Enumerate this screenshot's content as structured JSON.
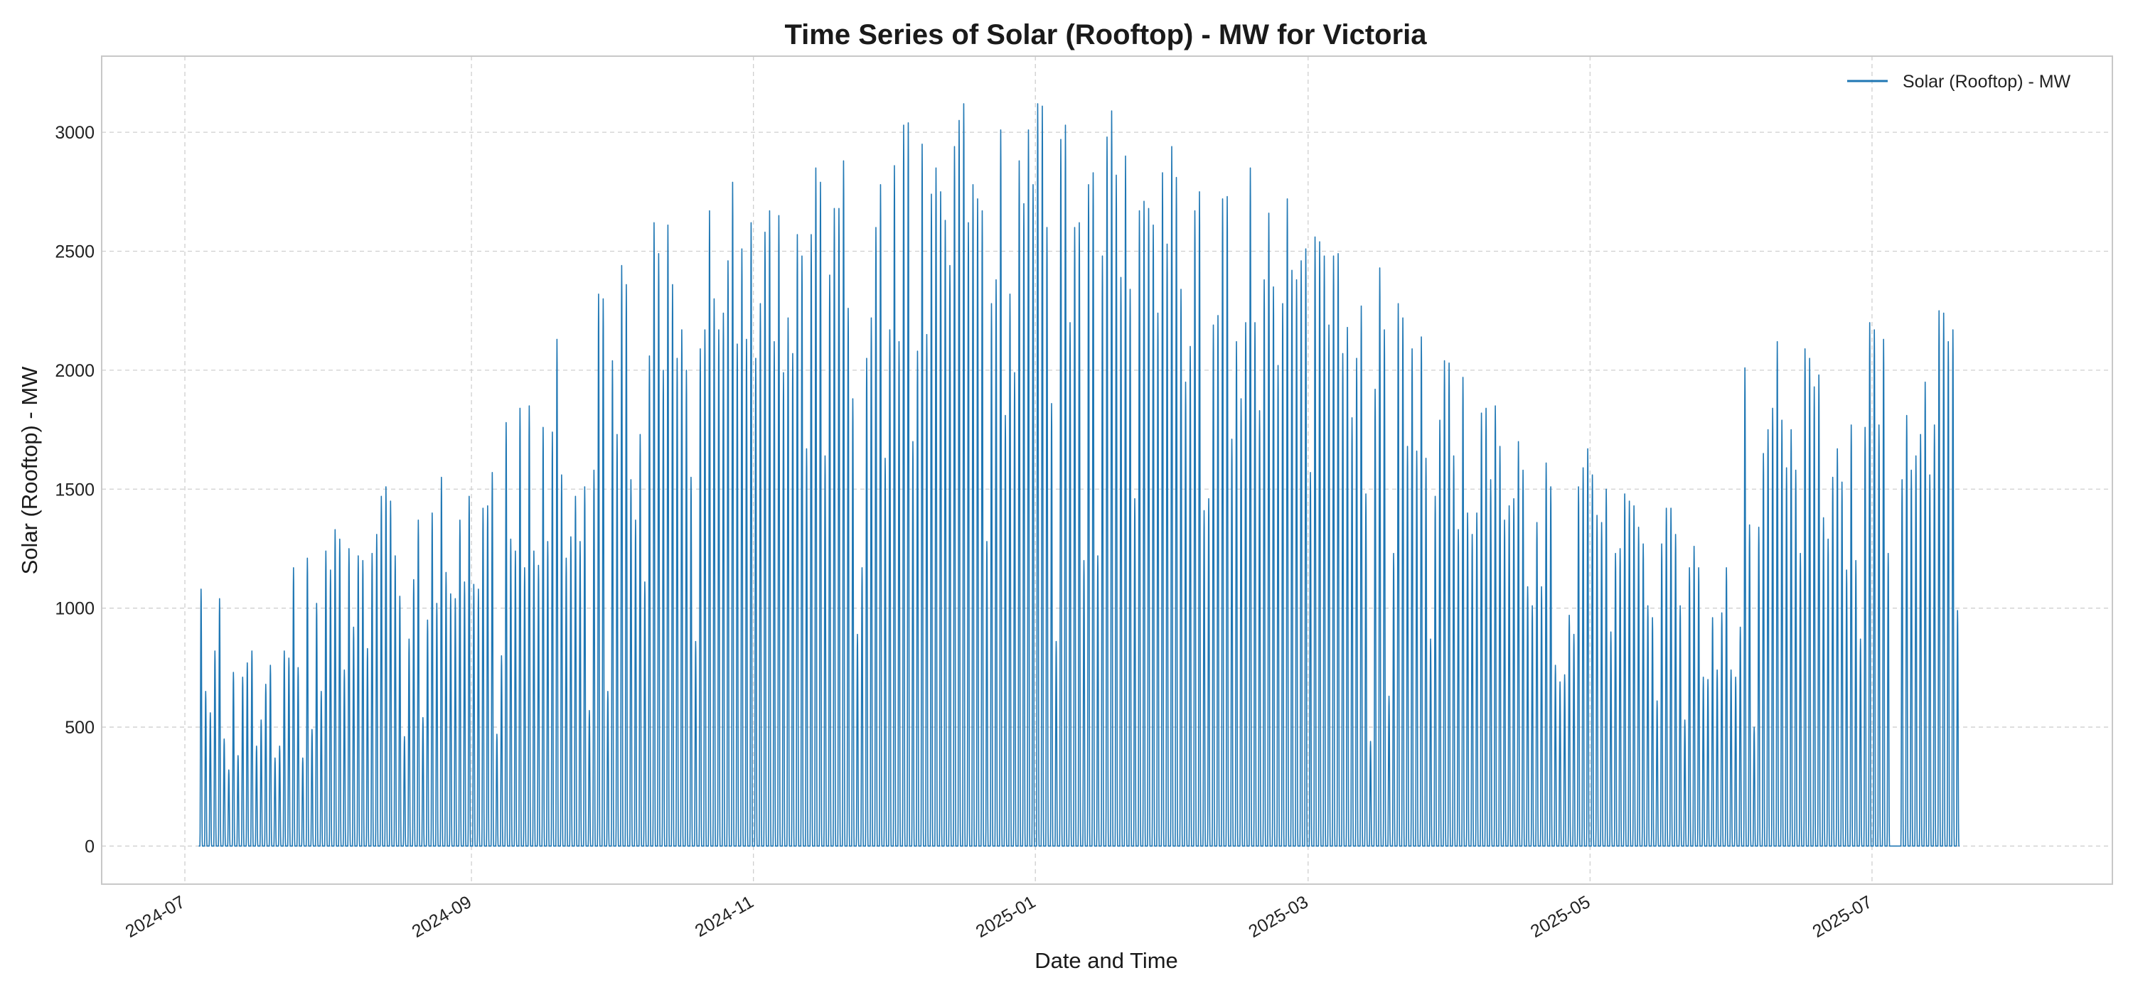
{
  "chart_data": {
    "type": "line",
    "title": "Time Series of Solar (Rooftop) -  MW for Victoria",
    "xlabel": "Date and Time",
    "ylabel": "Solar (Rooftop) -  MW",
    "x_ticks": [
      "2024-07",
      "2024-09",
      "2024-11",
      "2025-01",
      "2025-03",
      "2025-05",
      "2025-07"
    ],
    "y_ticks": [
      0,
      500,
      1000,
      1500,
      2000,
      2500,
      3000
    ],
    "xlim": [
      "2024-06-13",
      "2025-08-22"
    ],
    "ylim": [
      -160,
      3320
    ],
    "grid": true,
    "legend_position": "top-right",
    "color": "#1f77b4",
    "series": [
      {
        "name": "Solar (Rooftop) -  MW",
        "x_start": "2024-07-04",
        "x_step": "1 day",
        "note_shape": "daily profile: 0 at night, peaking at the daily maximum below",
        "daily_peak": [
          1080,
          650,
          560,
          820,
          1040,
          450,
          320,
          730,
          380,
          710,
          770,
          820,
          420,
          530,
          680,
          760,
          370,
          420,
          820,
          790,
          1170,
          750,
          370,
          1210,
          490,
          1020,
          650,
          1240,
          1160,
          1330,
          1290,
          740,
          1250,
          920,
          1220,
          1200,
          830,
          1230,
          1310,
          1470,
          1510,
          1450,
          1220,
          1050,
          460,
          870,
          1120,
          1370,
          540,
          950,
          1400,
          1020,
          1550,
          1150,
          1060,
          1040,
          1370,
          1110,
          1470,
          1100,
          1080,
          1420,
          1430,
          1570,
          470,
          800,
          1780,
          1290,
          1240,
          1840,
          1170,
          1850,
          1240,
          1180,
          1760,
          1280,
          1740,
          2130,
          1560,
          1210,
          1300,
          1470,
          1280,
          1510,
          570,
          1580,
          2320,
          2300,
          650,
          2040,
          1730,
          2440,
          2360,
          1540,
          1370,
          1730,
          1110,
          2060,
          2620,
          2490,
          2000,
          2610,
          2360,
          2050,
          2170,
          2000,
          1550,
          860,
          2090,
          2170,
          2670,
          2300,
          2170,
          2240,
          2460,
          2790,
          2110,
          2510,
          2130,
          2620,
          2050,
          2280,
          2580,
          2670,
          2120,
          2650,
          1990,
          2220,
          2070,
          2570,
          2480,
          1670,
          2570,
          2850,
          2790,
          1640,
          2400,
          2680,
          2680,
          2880,
          2260,
          1880,
          890,
          1170,
          2050,
          2220,
          2600,
          2780,
          1630,
          2170,
          2860,
          2120,
          3030,
          3040,
          1700,
          2080,
          2950,
          2150,
          2740,
          2850,
          2750,
          2630,
          2440,
          2940,
          3050,
          3120,
          2620,
          2780,
          2720,
          2670,
          1280,
          2280,
          2380,
          3010,
          1810,
          2320,
          1990,
          2880,
          2700,
          3010,
          2780,
          3120,
          3110,
          2600,
          1860,
          860,
          2970,
          3030,
          2200,
          2600,
          2620,
          1200,
          2780,
          2830,
          1220,
          2480,
          2980,
          3090,
          2820,
          2390,
          2900,
          2340,
          1460,
          2670,
          2710,
          2680,
          2610,
          2240,
          2830,
          2530,
          2940,
          2810,
          2340,
          1950,
          2100,
          2670,
          2750,
          1410,
          1460,
          2190,
          2230,
          2720,
          2730,
          1710,
          2120,
          1880,
          2200,
          2850,
          2200,
          1830,
          2380,
          2660,
          2350,
          2020,
          2280,
          2720,
          2420,
          2380,
          2460,
          2510,
          1570,
          2560,
          2540,
          2480,
          2190,
          2480,
          2490,
          2070,
          2180,
          1800,
          2050,
          2270,
          1480,
          440,
          1920,
          2430,
          2170,
          630,
          1230,
          2280,
          2220,
          1680,
          2090,
          1660,
          2140,
          1630,
          870,
          1470,
          1790,
          2040,
          2030,
          1640,
          1330,
          1970,
          1400,
          1310,
          1400,
          1820,
          1840,
          1540,
          1850,
          1680,
          1370,
          1430,
          1460,
          1700,
          1580,
          1090,
          1010,
          1360,
          1090,
          1610,
          1510,
          760,
          690,
          720,
          970,
          890,
          1510,
          1590,
          1670,
          1560,
          1390,
          1360,
          1500,
          900,
          1230,
          1250,
          1480,
          1450,
          1430,
          1340,
          1270,
          1010,
          960,
          610,
          1270,
          1420,
          1420,
          1310,
          1010,
          530,
          1170,
          1260,
          1170,
          710,
          700,
          960,
          740,
          980,
          1170,
          740,
          710,
          920,
          2010,
          1350,
          500,
          1340,
          1650,
          1750,
          1840,
          2120,
          1790,
          1590,
          1750,
          1580,
          1230,
          2090,
          2050,
          1930,
          1980,
          1380,
          1290,
          1550,
          1670,
          1530,
          1160,
          1770,
          1200,
          870,
          1760,
          2200,
          2170,
          1770,
          2130,
          1230,
          0,
          0,
          1540,
          1810,
          1580,
          1640,
          1730,
          1950,
          1560,
          1770,
          2250,
          2240,
          2120,
          2170,
          990
        ]
      }
    ]
  }
}
